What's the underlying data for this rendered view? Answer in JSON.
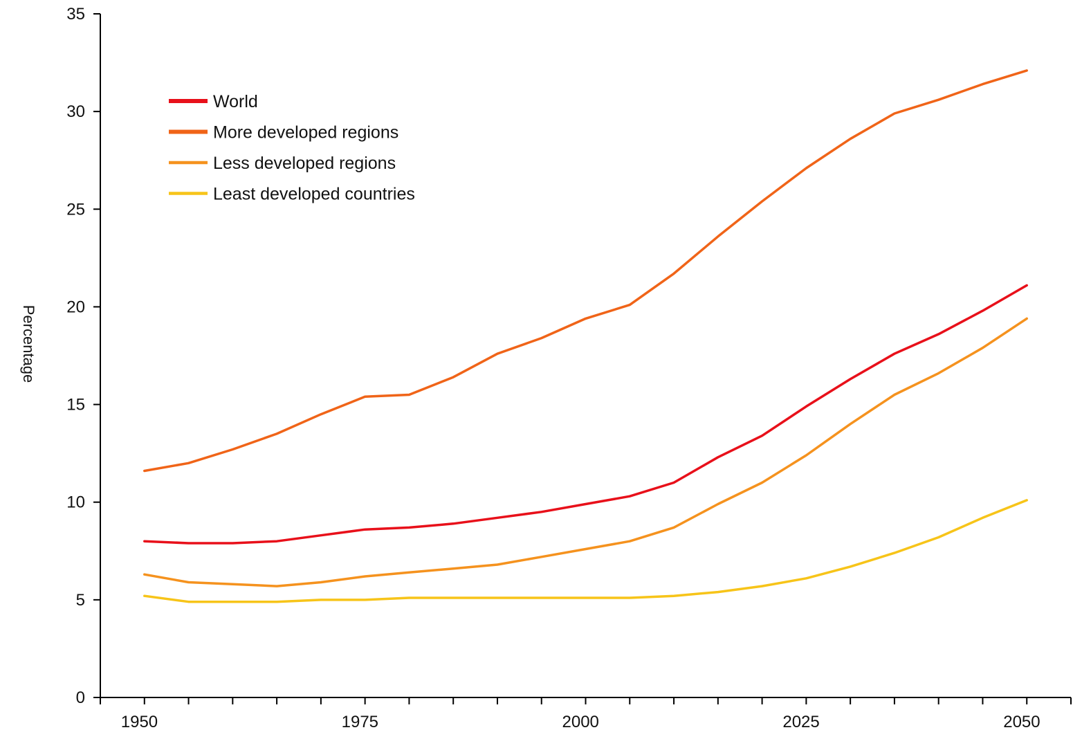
{
  "chart_data": {
    "type": "line",
    "title": "",
    "xlabel": "",
    "ylabel": "Percentage",
    "xlim": [
      1945,
      2055
    ],
    "ylim": [
      0,
      35
    ],
    "x_ticks": [
      1950,
      1975,
      2000,
      2025,
      2050
    ],
    "y_ticks": [
      0,
      5,
      10,
      15,
      20,
      25,
      30,
      35
    ],
    "grid": false,
    "legend_position": "top-left",
    "x": [
      1950,
      1955,
      1960,
      1965,
      1970,
      1975,
      1980,
      1985,
      1990,
      1995,
      2000,
      2005,
      2010,
      2015,
      2020,
      2025,
      2030,
      2035,
      2040,
      2045,
      2050
    ],
    "series": [
      {
        "name": "World",
        "color": "#e8101a",
        "values": [
          8.0,
          7.9,
          7.9,
          8.0,
          8.3,
          8.6,
          8.7,
          8.9,
          9.2,
          9.5,
          9.9,
          10.3,
          11.0,
          12.3,
          13.4,
          14.9,
          16.3,
          17.6,
          18.6,
          19.8,
          21.1
        ]
      },
      {
        "name": "More developed regions",
        "color": "#f06418",
        "values": [
          11.6,
          12.0,
          12.7,
          13.5,
          14.5,
          15.4,
          15.5,
          16.4,
          17.6,
          18.4,
          19.4,
          20.1,
          21.7,
          23.6,
          25.4,
          27.1,
          28.6,
          29.9,
          30.6,
          31.4,
          32.1
        ]
      },
      {
        "name": "Less developed regions",
        "color": "#f5921e",
        "values": [
          6.3,
          5.9,
          5.8,
          5.7,
          5.9,
          6.2,
          6.4,
          6.6,
          6.8,
          7.2,
          7.6,
          8.0,
          8.7,
          9.9,
          11.0,
          12.4,
          14.0,
          15.5,
          16.6,
          17.9,
          19.4
        ]
      },
      {
        "name": "Least developed countries",
        "color": "#f7c419",
        "values": [
          5.2,
          4.9,
          4.9,
          4.9,
          5.0,
          5.0,
          5.1,
          5.1,
          5.1,
          5.1,
          5.1,
          5.1,
          5.2,
          5.4,
          5.7,
          6.1,
          6.7,
          7.4,
          8.2,
          9.2,
          10.1
        ]
      }
    ]
  }
}
